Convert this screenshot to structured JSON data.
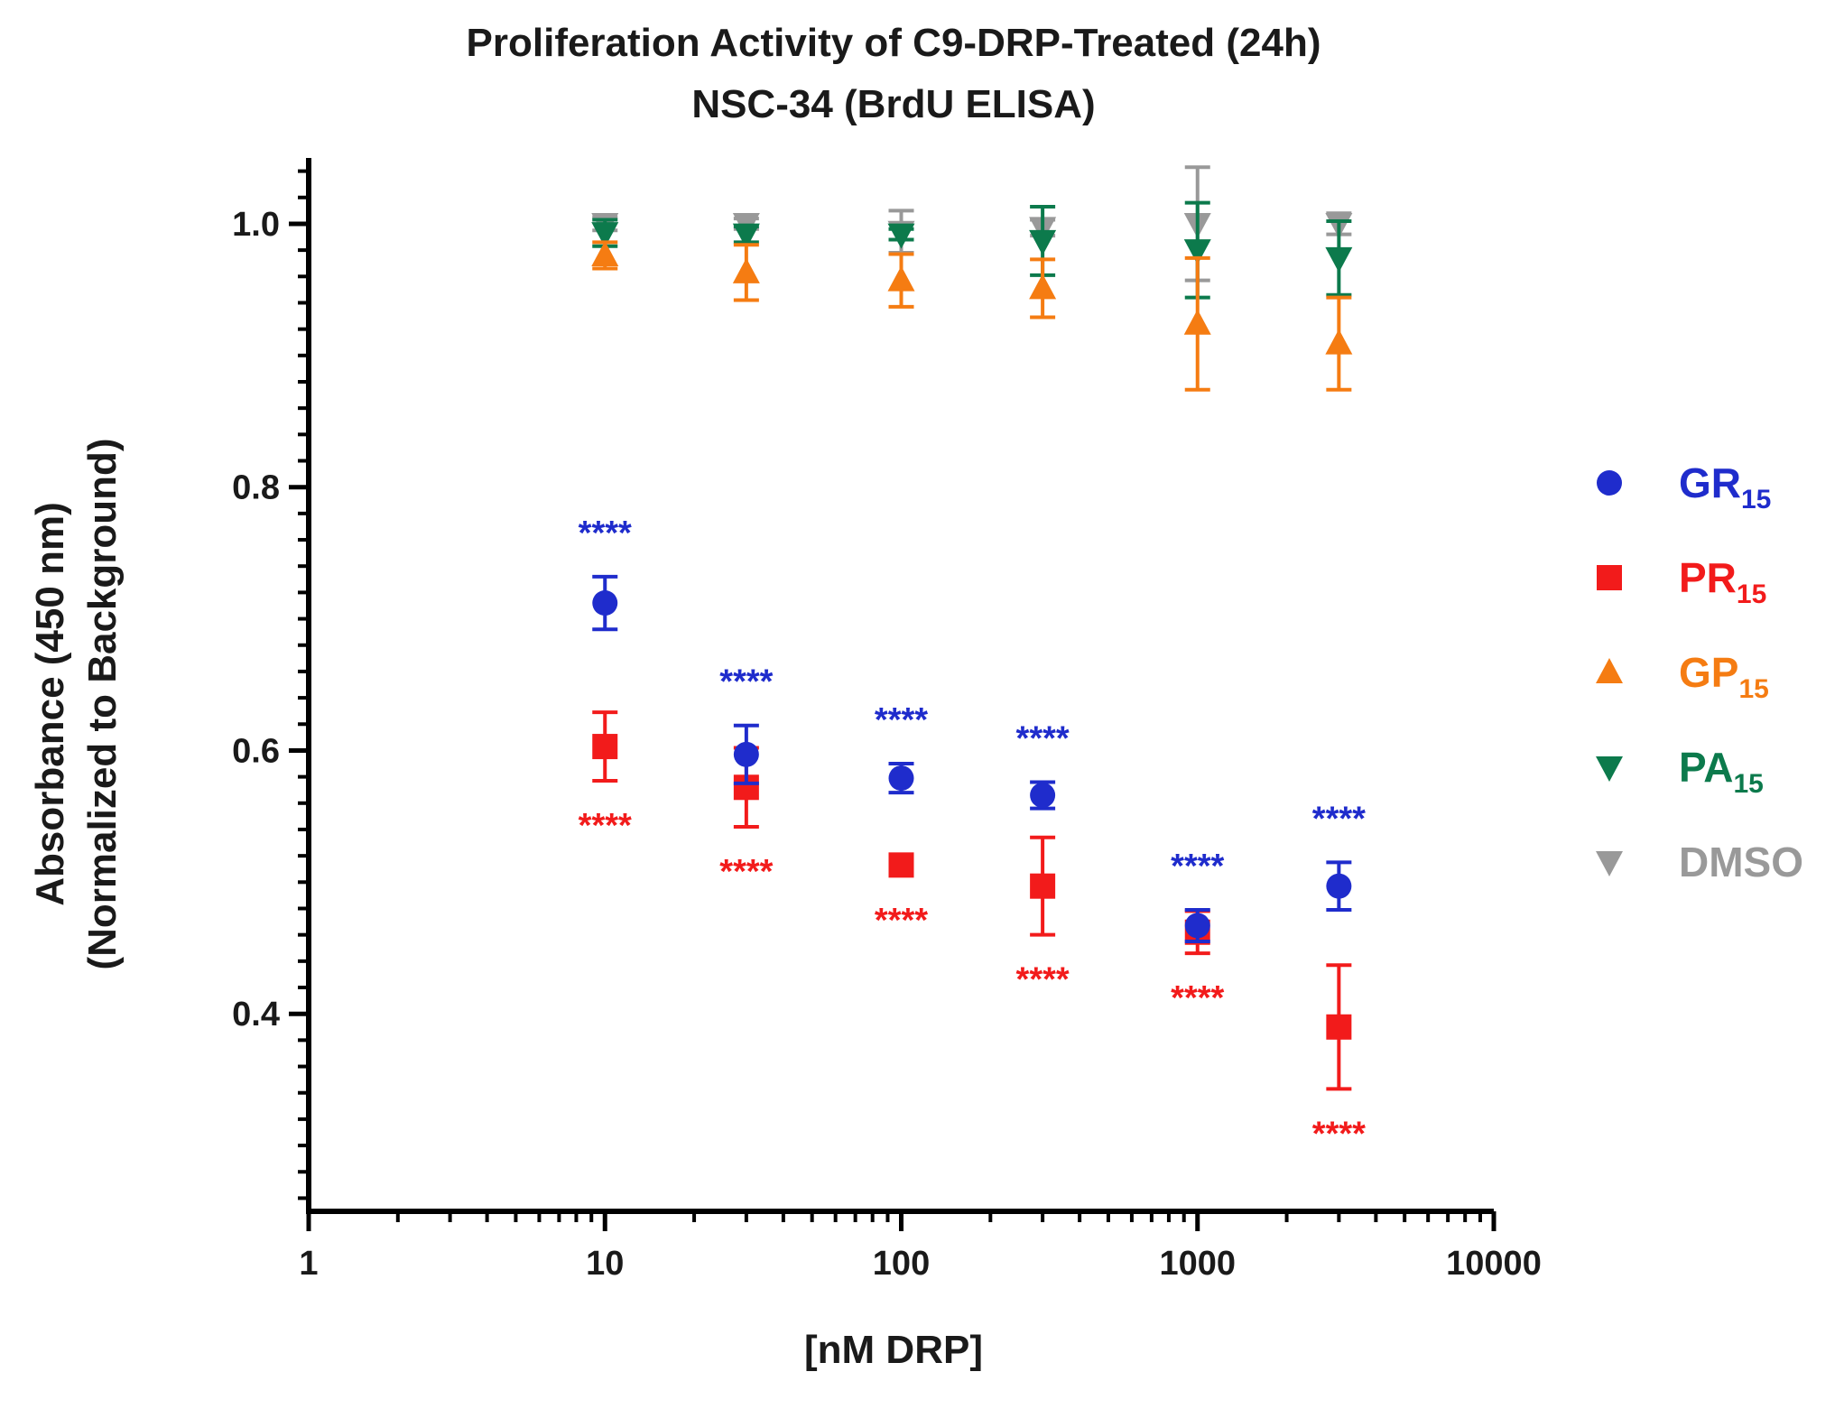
{
  "chart_data": {
    "type": "scatter",
    "title": "Proliferation Activity of C9-DRP-Treated (24h)",
    "subtitle": "NSC-34 (BrdU ELISA)",
    "xlabel": "[nM DRP]",
    "ylabel": "Absorbance (450 nm)",
    "ylabel2": "(Normalized to Background)",
    "x_scale": "log",
    "xlim": [
      1,
      10000
    ],
    "ylim": [
      0.25,
      1.05
    ],
    "x_ticks": [
      "1",
      "10",
      "100",
      "1000",
      "10000"
    ],
    "y_ticks": [
      "0.4",
      "0.6",
      "0.8",
      "1.0"
    ],
    "legend_position": "right",
    "x": [
      10,
      30,
      100,
      300,
      1000,
      3000
    ],
    "series": [
      {
        "name": "GR",
        "sub": "15",
        "color": "#1f2ccc",
        "marker": "circle",
        "values": [
          0.712,
          0.597,
          0.579,
          0.566,
          0.467,
          0.497
        ],
        "errors": [
          0.02,
          0.022,
          0.011,
          0.01,
          0.012,
          0.018
        ],
        "sig": [
          "****",
          "****",
          "****",
          "****",
          "****",
          "****"
        ],
        "sig_pos": "above"
      },
      {
        "name": "PR",
        "sub": "15",
        "color": "#f21b1b",
        "marker": "square",
        "values": [
          0.603,
          0.572,
          0.513,
          0.497,
          0.462,
          0.39
        ],
        "errors": [
          0.026,
          0.03,
          0.008,
          0.037,
          0.016,
          0.047
        ],
        "sig": [
          "****",
          "****",
          "****",
          "****",
          "****",
          "****"
        ],
        "sig_pos": "below"
      },
      {
        "name": "GP",
        "sub": "15",
        "color": "#f57c12",
        "marker": "triangle-up",
        "values": [
          0.976,
          0.963,
          0.957,
          0.951,
          0.924,
          0.909
        ],
        "errors": [
          0.01,
          0.021,
          0.02,
          0.022,
          0.05,
          0.035
        ]
      },
      {
        "name": "PA",
        "sub": "15",
        "color": "#0c7a4c",
        "marker": "triangle-down",
        "values": [
          0.993,
          0.992,
          0.992,
          0.987,
          0.98,
          0.974
        ],
        "errors": [
          0.01,
          0.006,
          0.004,
          0.026,
          0.036,
          0.028
        ]
      },
      {
        "name": "DMSO",
        "sub": "",
        "color": "#999999",
        "marker": "triangle-down",
        "values": [
          1.0,
          1.0,
          0.994,
          0.997,
          1.0,
          1.0
        ],
        "errors": [
          0.005,
          0.004,
          0.016,
          0.006,
          0.043,
          0.008
        ]
      }
    ]
  }
}
